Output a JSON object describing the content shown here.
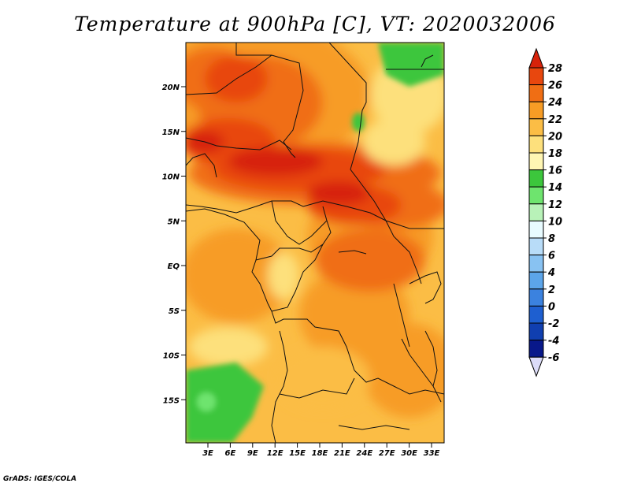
{
  "title": "Temperature at 900hPa [C], VT: 2020032006",
  "footer": "GrADS: IGES/COLA",
  "map": {
    "lat_labels": [
      "20N",
      "15N",
      "10N",
      "5N",
      "EQ",
      "5S",
      "10S",
      "15S"
    ],
    "lon_labels": [
      "3E",
      "6E",
      "9E",
      "12E",
      "15E",
      "18E",
      "21E",
      "24E",
      "27E",
      "30E",
      "33E"
    ]
  },
  "colorbar": {
    "levels": [
      "28",
      "26",
      "24",
      "22",
      "20",
      "18",
      "16",
      "14",
      "12",
      "10",
      "8",
      "6",
      "4",
      "2",
      "0",
      "-2",
      "-4",
      "-6"
    ],
    "colors": [
      "#d7220a",
      "#e8470e",
      "#f06e14",
      "#f79c25",
      "#fbbd45",
      "#fde07c",
      "#fff6b3",
      "#3cc63c",
      "#6ee46e",
      "#b8f2b8",
      "#e8fbff",
      "#b8dcf8",
      "#88c2f2",
      "#5ca5ea",
      "#3b82df",
      "#1e5fd0",
      "#103fb0",
      "#08188a",
      "#dcdcf8"
    ]
  }
}
